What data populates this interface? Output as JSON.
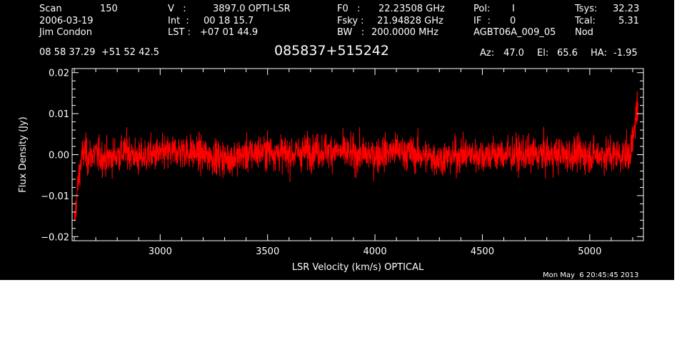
{
  "header": {
    "scan_label": "Scan",
    "scan_value": "150",
    "date": "2006-03-19",
    "observer": "Jim Condon",
    "v_label": "V   :",
    "v_value": "3897.0 OPTI-LSR",
    "int_label": "Int  :",
    "int_value": "00 18 15.7",
    "lst_label": "LST :",
    "lst_value": "+07 01 44.9",
    "f0_label": "F0   :",
    "f0_value": "22.23508 GHz",
    "fsky_label": "Fsky :",
    "fsky_value": "21.94828 GHz",
    "bw_label": "BW   :",
    "bw_value": "200.0000 MHz",
    "pol_label": "Pol:",
    "pol_value": "I",
    "if_label": "IF  :",
    "if_value": "0",
    "project": "AGBT06A_009_05",
    "tsys_label": "Tsys:",
    "tsys_value": "32.23",
    "tcal_label": "Tcal:",
    "tcal_value": "5.31",
    "mode": "Nod",
    "coords": "08 58 37.29  +51 52 42.5",
    "source": "085837+515242",
    "az_label": "Az:",
    "az_value": "47.0",
    "el_label": "El:",
    "el_value": "65.6",
    "ha_label": "HA:",
    "ha_value": "-1.95"
  },
  "timestamp": "Mon May  6 20:45:45 2013",
  "chart_data": {
    "type": "line",
    "xlabel": "LSR Velocity (km/s) OPTICAL",
    "ylabel": "Flux Density (Jy)",
    "xlim": [
      2590,
      5250
    ],
    "ylim": [
      -0.021,
      0.021
    ],
    "x_ticks": [
      3000,
      3500,
      4000,
      4500,
      5000
    ],
    "x_tick_labels": [
      "3000",
      "3500",
      "4000",
      "4500",
      "5000"
    ],
    "y_ticks": [
      -0.02,
      -0.01,
      0.0,
      0.01,
      0.02
    ],
    "y_tick_labels": [
      "−0.02",
      "−0.01",
      "0.00",
      "0.01",
      "0.02"
    ],
    "series": [
      {
        "color": "#ff0000",
        "x": [
          2600,
          2605,
          2612,
          2620,
          2630,
          2640,
          2650,
          2660,
          2680,
          2700,
          2750,
          2800,
          2850,
          2900,
          2950,
          3000,
          3100,
          3200,
          3300,
          3400,
          3500,
          3600,
          3700,
          3800,
          3900,
          4000,
          4100,
          4200,
          4300,
          4400,
          4500,
          4600,
          4700,
          4800,
          4900,
          5000,
          5100,
          5150,
          5180,
          5195,
          5205,
          5210,
          5215,
          5220,
          5225
        ],
        "y": [
          -0.017,
          -0.014,
          -0.01,
          -0.006,
          -0.002,
          0.0,
          0.001,
          -0.001,
          0.0,
          0.0,
          -0.001,
          0.0,
          0.001,
          -0.001,
          0.0,
          0.0,
          0.001,
          0.0,
          -0.001,
          0.0,
          0.001,
          0.0,
          0.001,
          0.001,
          0.0,
          0.0,
          0.001,
          0.0,
          -0.001,
          0.0,
          0.0,
          0.0,
          0.0,
          0.0,
          0.0,
          0.0,
          0.0,
          0.0,
          0.0,
          0.002,
          0.004,
          0.007,
          0.01,
          0.012,
          0.009
        ],
        "noise_rms": 0.003
      }
    ],
    "grid": false,
    "legend": "none"
  }
}
